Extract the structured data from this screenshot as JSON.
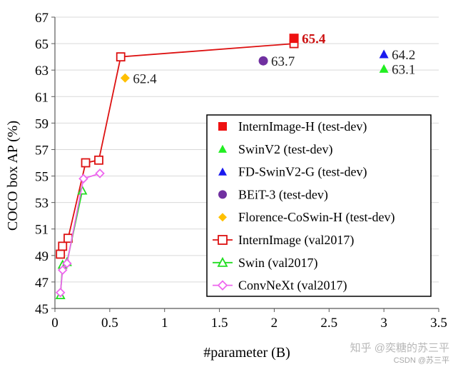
{
  "chart_data": {
    "type": "scatter",
    "xlabel": "#parameter (B)",
    "ylabel": "COCO box AP (%)",
    "xlim": [
      0,
      3.5
    ],
    "ylim": [
      45,
      67
    ],
    "xticks": [
      0,
      0.5,
      1,
      1.5,
      2,
      2.5,
      3,
      3.5
    ],
    "xtick_labels": [
      "0",
      "0.5",
      "1",
      "1.5",
      "2",
      "2.5",
      "3",
      "3.5"
    ],
    "yticks": [
      45,
      47,
      49,
      51,
      53,
      55,
      57,
      59,
      61,
      63,
      65,
      67
    ],
    "ytick_labels": [
      "45",
      "47",
      "49",
      "51",
      "53",
      "55",
      "57",
      "59",
      "61",
      "63",
      "65",
      "67"
    ],
    "legend_position": "bottom-right",
    "points": [
      {
        "name": "InternImage-H (test-dev)",
        "marker": "square-filled",
        "color": "#ee1111",
        "x": 2.18,
        "y": 65.4,
        "label": "65.4",
        "label_color": "#cc1111",
        "label_bold": true
      },
      {
        "name": "SwinV2 (test-dev)",
        "marker": "triangle-filled",
        "color": "#22ee22",
        "x": 3.0,
        "y": 63.1,
        "label": "63.1",
        "label_color": "#222222",
        "label_bold": false
      },
      {
        "name": "FD-SwinV2-G (test-dev)",
        "marker": "triangle-filled",
        "color": "#1a1aee",
        "x": 3.0,
        "y": 64.2,
        "label": "64.2",
        "label_color": "#222222",
        "label_bold": false
      },
      {
        "name": "BEiT-3 (test-dev)",
        "marker": "circle-filled",
        "color": "#7030a0",
        "x": 1.9,
        "y": 63.7,
        "label": "63.7",
        "label_color": "#222222",
        "label_bold": false
      },
      {
        "name": "Florence-CoSwin-H (test-dev)",
        "marker": "diamond-filled",
        "color": "#ffc000",
        "x": 0.64,
        "y": 62.4,
        "label": "62.4",
        "label_color": "#222222",
        "label_bold": false
      }
    ],
    "series": [
      {
        "name": "InternImage (val2017)",
        "marker": "square-open",
        "color": "#dd1111",
        "x": [
          0.05,
          0.07,
          0.12,
          0.28,
          0.4,
          0.6,
          2.18
        ],
        "y": [
          49.1,
          49.7,
          50.3,
          56.0,
          56.2,
          64.0,
          65.0
        ]
      },
      {
        "name": "Swin (val2017)",
        "marker": "triangle-open",
        "color": "#22dd22",
        "x": [
          0.05,
          0.07,
          0.11,
          0.25
        ],
        "y": [
          46.0,
          48.3,
          48.5,
          53.9
        ]
      },
      {
        "name": "ConvNeXt (val2017)",
        "marker": "diamond-open",
        "color": "#ee66ee",
        "x": [
          0.05,
          0.07,
          0.11,
          0.26,
          0.41
        ],
        "y": [
          46.2,
          47.9,
          48.4,
          54.8,
          55.2
        ]
      }
    ],
    "legend": [
      {
        "label": "InternImage-H (test-dev)",
        "marker": "square-filled",
        "color": "#ee1111"
      },
      {
        "label": "SwinV2 (test-dev)",
        "marker": "triangle-filled",
        "color": "#22ee22"
      },
      {
        "label": "FD-SwinV2-G (test-dev)",
        "marker": "triangle-filled",
        "color": "#1a1aee"
      },
      {
        "label": "BEiT-3 (test-dev)",
        "marker": "circle-filled",
        "color": "#7030a0"
      },
      {
        "label": "Florence-CoSwin-H (test-dev)",
        "marker": "diamond-filled",
        "color": "#ffc000"
      },
      {
        "label": "InternImage (val2017)",
        "marker": "square-open",
        "color": "#dd1111"
      },
      {
        "label": "Swin (val2017)",
        "marker": "triangle-open",
        "color": "#22dd22"
      },
      {
        "label": "ConvNeXt (val2017)",
        "marker": "diamond-open",
        "color": "#ee66ee"
      }
    ]
  },
  "watermark": {
    "zhihu": "知乎 @奕糖的苏三平",
    "csdn": "CSDN @苏三平"
  }
}
